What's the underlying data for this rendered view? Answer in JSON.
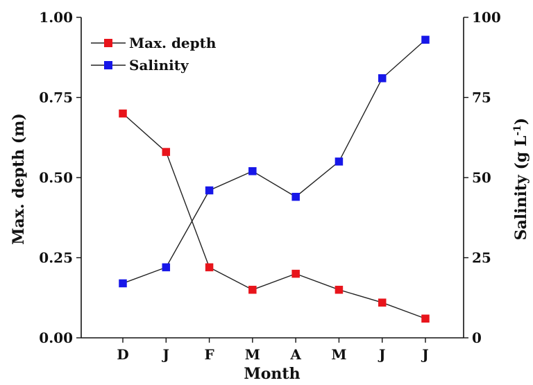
{
  "chart_data": {
    "type": "line",
    "categories": [
      "D",
      "J",
      "F",
      "M",
      "A",
      "M",
      "J",
      "J"
    ],
    "xlabel": "Month",
    "y_left": {
      "label": "Max. depth (m)",
      "ylim": [
        0,
        1
      ],
      "ticks": [
        "0.00",
        "0.25",
        "0.50",
        "0.75",
        "1.00"
      ]
    },
    "y_right": {
      "label_main": "Salinity (g L",
      "label_sup": "-1",
      "label_end": ")",
      "ylim": [
        0,
        100
      ],
      "ticks": [
        "0",
        "25",
        "50",
        "75",
        "100"
      ]
    },
    "series": [
      {
        "name": "Max. depth",
        "axis": "left",
        "color": "#e8141b",
        "values": [
          0.7,
          0.58,
          0.22,
          0.15,
          0.2,
          0.15,
          0.11,
          0.06
        ]
      },
      {
        "name": "Salinity",
        "axis": "right",
        "color": "#1717e8",
        "values": [
          17,
          22,
          46,
          52,
          44,
          55,
          81,
          93
        ]
      }
    ],
    "grid": false,
    "legend_position": "top-left"
  }
}
